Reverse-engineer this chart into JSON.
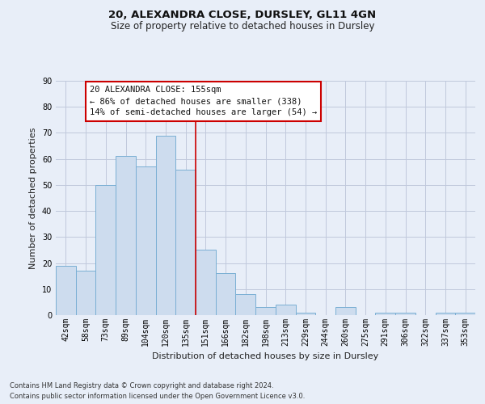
{
  "title1": "20, ALEXANDRA CLOSE, DURSLEY, GL11 4GN",
  "title2": "Size of property relative to detached houses in Dursley",
  "xlabel": "Distribution of detached houses by size in Dursley",
  "ylabel": "Number of detached properties",
  "bar_labels": [
    "42sqm",
    "58sqm",
    "73sqm",
    "89sqm",
    "104sqm",
    "120sqm",
    "135sqm",
    "151sqm",
    "166sqm",
    "182sqm",
    "198sqm",
    "213sqm",
    "229sqm",
    "244sqm",
    "260sqm",
    "275sqm",
    "291sqm",
    "306sqm",
    "322sqm",
    "337sqm",
    "353sqm"
  ],
  "bar_values": [
    19,
    17,
    50,
    61,
    57,
    69,
    56,
    25,
    16,
    8,
    3,
    4,
    1,
    0,
    3,
    0,
    1,
    1,
    0,
    1,
    1
  ],
  "bar_color": "#cddcee",
  "bar_edge_color": "#7aafd4",
  "ylim": [
    0,
    90
  ],
  "yticks": [
    0,
    10,
    20,
    30,
    40,
    50,
    60,
    70,
    80,
    90
  ],
  "annotation_lines": [
    "20 ALEXANDRA CLOSE: 155sqm",
    "← 86% of detached houses are smaller (338)",
    "14% of semi-detached houses are larger (54) →"
  ],
  "vline_bin": 7,
  "footer": [
    "Contains HM Land Registry data © Crown copyright and database right 2024.",
    "Contains public sector information licensed under the Open Government Licence v3.0."
  ],
  "bg_color": "#e8eef8",
  "grid_color": "#c0c8dc",
  "vline_color": "#cc0000",
  "ann_box_edge": "#cc0000",
  "ann_box_face": "#ffffff",
  "title1_fontsize": 9.5,
  "title2_fontsize": 8.5,
  "ylabel_fontsize": 8.0,
  "xlabel_fontsize": 8.0,
  "tick_fontsize": 7.0,
  "ann_fontsize": 7.5
}
